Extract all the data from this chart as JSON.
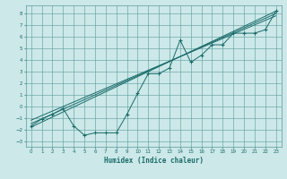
{
  "title": "",
  "xlabel": "Humidex (Indice chaleur)",
  "bg_color": "#cce8e8",
  "grid_color": "#5a9a9a",
  "line_color": "#1a6b6b",
  "xlim": [
    -0.5,
    23.5
  ],
  "ylim": [
    -3.5,
    8.7
  ],
  "xticks": [
    0,
    1,
    2,
    3,
    4,
    5,
    6,
    7,
    8,
    9,
    10,
    11,
    12,
    13,
    14,
    15,
    16,
    17,
    18,
    19,
    20,
    21,
    22,
    23
  ],
  "yticks": [
    -3,
    -2,
    -1,
    0,
    1,
    2,
    3,
    4,
    5,
    6,
    7,
    8
  ],
  "scatter_x": [
    0,
    1,
    2,
    3,
    4,
    5,
    6,
    7,
    8,
    9,
    10,
    11,
    12,
    13,
    14,
    15,
    16,
    17,
    18,
    19,
    20,
    21,
    22,
    23
  ],
  "scatter_y": [
    -1.7,
    -1.1,
    -0.7,
    -0.2,
    -1.7,
    -2.5,
    -2.3,
    -2.3,
    -2.3,
    -0.7,
    1.1,
    2.8,
    2.8,
    3.3,
    5.7,
    3.8,
    4.4,
    5.3,
    5.3,
    6.3,
    6.3,
    6.3,
    6.6,
    8.2
  ],
  "regression_lines": [
    {
      "x": [
        0,
        23
      ],
      "y": [
        -1.8,
        8.2
      ]
    },
    {
      "x": [
        0,
        23
      ],
      "y": [
        -1.5,
        8.0
      ]
    },
    {
      "x": [
        0,
        23
      ],
      "y": [
        -1.2,
        7.8
      ]
    }
  ]
}
